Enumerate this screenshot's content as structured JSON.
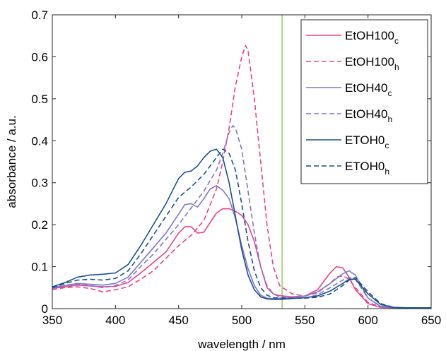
{
  "chart_data": {
    "type": "line",
    "xlabel": "wavelength / nm",
    "ylabel": "absorbance / a.u.",
    "xlim": [
      350,
      650
    ],
    "ylim": [
      0,
      0.7
    ],
    "xticks": [
      "350",
      "400",
      "450",
      "500",
      "550",
      "600",
      "650"
    ],
    "yticks": [
      "0",
      "0.1",
      "0.2",
      "0.3",
      "0.4",
      "0.5",
      "0.6",
      "0.7"
    ],
    "grid": false,
    "legend_position": "top-right",
    "vertical_marker": {
      "x": 532,
      "color": "#a9cf7d"
    },
    "colors": {
      "etoh100": "#e8438a",
      "etoh40": "#7d77c9",
      "etoh0": "#1b4f8e"
    },
    "series": [
      {
        "name": "EtOH100",
        "subscript": "c",
        "color": "#e8438a",
        "style": "solid",
        "x": [
          350,
          360,
          370,
          380,
          390,
          400,
          410,
          420,
          430,
          440,
          450,
          455,
          460,
          465,
          470,
          475,
          480,
          485,
          490,
          495,
          500,
          505,
          510,
          515,
          520,
          525,
          530,
          540,
          550,
          560,
          570,
          575,
          580,
          585,
          590,
          600,
          610,
          620,
          630,
          640,
          650
        ],
        "y": [
          0.048,
          0.052,
          0.056,
          0.054,
          0.052,
          0.053,
          0.062,
          0.085,
          0.11,
          0.135,
          0.18,
          0.195,
          0.195,
          0.18,
          0.182,
          0.205,
          0.228,
          0.238,
          0.238,
          0.232,
          0.222,
          0.2,
          0.16,
          0.1,
          0.05,
          0.035,
          0.031,
          0.028,
          0.03,
          0.045,
          0.085,
          0.1,
          0.097,
          0.075,
          0.045,
          0.012,
          0.003,
          0.002,
          0.002,
          0.002,
          0.002
        ]
      },
      {
        "name": "EtOH100",
        "subscript": "h",
        "color": "#e8438a",
        "style": "dashed",
        "x": [
          350,
          360,
          370,
          380,
          390,
          400,
          410,
          420,
          430,
          440,
          450,
          460,
          470,
          480,
          485,
          490,
          495,
          500,
          503,
          505,
          510,
          515,
          520,
          525,
          530,
          540,
          550,
          560,
          570,
          575,
          580,
          585,
          590,
          600,
          610,
          620,
          630,
          640,
          650
        ],
        "y": [
          0.045,
          0.05,
          0.052,
          0.048,
          0.04,
          0.045,
          0.052,
          0.07,
          0.09,
          0.12,
          0.15,
          0.175,
          0.21,
          0.285,
          0.35,
          0.43,
          0.53,
          0.6,
          0.627,
          0.615,
          0.5,
          0.35,
          0.2,
          0.1,
          0.055,
          0.035,
          0.03,
          0.038,
          0.06,
          0.075,
          0.078,
          0.07,
          0.05,
          0.015,
          0.004,
          0.002,
          0.002,
          0.002,
          0.002
        ]
      },
      {
        "name": "EtOH40",
        "subscript": "c",
        "color": "#7d77c9",
        "style": "solid",
        "x": [
          350,
          360,
          370,
          380,
          390,
          400,
          410,
          420,
          430,
          440,
          450,
          455,
          460,
          465,
          470,
          475,
          480,
          485,
          490,
          495,
          500,
          505,
          510,
          515,
          520,
          525,
          530,
          540,
          550,
          560,
          570,
          580,
          585,
          590,
          600,
          610,
          620,
          630,
          640,
          650
        ],
        "y": [
          0.05,
          0.055,
          0.06,
          0.058,
          0.056,
          0.06,
          0.075,
          0.11,
          0.145,
          0.18,
          0.225,
          0.248,
          0.25,
          0.242,
          0.262,
          0.285,
          0.293,
          0.282,
          0.262,
          0.215,
          0.15,
          0.095,
          0.055,
          0.032,
          0.025,
          0.024,
          0.025,
          0.026,
          0.03,
          0.04,
          0.06,
          0.083,
          0.09,
          0.08,
          0.025,
          0.005,
          0.002,
          0.002,
          0.002,
          0.002
        ]
      },
      {
        "name": "EtOH40",
        "subscript": "h",
        "color": "#7d77c9",
        "style": "dashed",
        "x": [
          350,
          360,
          370,
          380,
          390,
          400,
          410,
          420,
          430,
          440,
          450,
          460,
          470,
          480,
          485,
          490,
          493,
          495,
          500,
          505,
          510,
          515,
          520,
          525,
          530,
          540,
          550,
          560,
          570,
          580,
          585,
          590,
          600,
          610,
          620,
          630,
          640,
          650
        ],
        "y": [
          0.048,
          0.055,
          0.058,
          0.055,
          0.05,
          0.055,
          0.068,
          0.1,
          0.13,
          0.165,
          0.2,
          0.24,
          0.28,
          0.33,
          0.37,
          0.42,
          0.436,
          0.43,
          0.38,
          0.28,
          0.18,
          0.1,
          0.055,
          0.035,
          0.028,
          0.025,
          0.025,
          0.033,
          0.05,
          0.068,
          0.074,
          0.07,
          0.025,
          0.006,
          0.002,
          0.002,
          0.002,
          0.002
        ]
      },
      {
        "name": "ETOH0",
        "subscript": "c",
        "color": "#1b4f8e",
        "style": "solid",
        "x": [
          350,
          360,
          370,
          380,
          390,
          400,
          410,
          420,
          430,
          440,
          450,
          455,
          460,
          465,
          470,
          475,
          480,
          485,
          490,
          495,
          500,
          505,
          510,
          515,
          520,
          525,
          530,
          540,
          550,
          560,
          570,
          580,
          585,
          590,
          600,
          610,
          620,
          630,
          640,
          650
        ],
        "y": [
          0.052,
          0.062,
          0.075,
          0.08,
          0.082,
          0.085,
          0.105,
          0.15,
          0.2,
          0.25,
          0.31,
          0.325,
          0.328,
          0.34,
          0.36,
          0.375,
          0.38,
          0.36,
          0.3,
          0.22,
          0.14,
          0.08,
          0.045,
          0.028,
          0.023,
          0.022,
          0.022,
          0.024,
          0.026,
          0.03,
          0.042,
          0.06,
          0.07,
          0.07,
          0.035,
          0.01,
          0.003,
          0.002,
          0.002,
          0.002
        ]
      },
      {
        "name": "ETOH0",
        "subscript": "h",
        "color": "#1b4f8e",
        "style": "dashed",
        "x": [
          350,
          360,
          370,
          380,
          390,
          400,
          410,
          420,
          430,
          440,
          450,
          460,
          470,
          480,
          485,
          490,
          495,
          500,
          505,
          510,
          515,
          520,
          525,
          530,
          540,
          550,
          560,
          570,
          580,
          585,
          590,
          600,
          610,
          620,
          630,
          640,
          650
        ],
        "y": [
          0.05,
          0.06,
          0.068,
          0.07,
          0.068,
          0.072,
          0.09,
          0.13,
          0.175,
          0.22,
          0.265,
          0.29,
          0.32,
          0.36,
          0.38,
          0.37,
          0.33,
          0.25,
          0.16,
          0.09,
          0.05,
          0.032,
          0.026,
          0.025,
          0.025,
          0.025,
          0.027,
          0.035,
          0.055,
          0.068,
          0.074,
          0.04,
          0.012,
          0.003,
          0.002,
          0.002,
          0.002
        ]
      }
    ]
  }
}
